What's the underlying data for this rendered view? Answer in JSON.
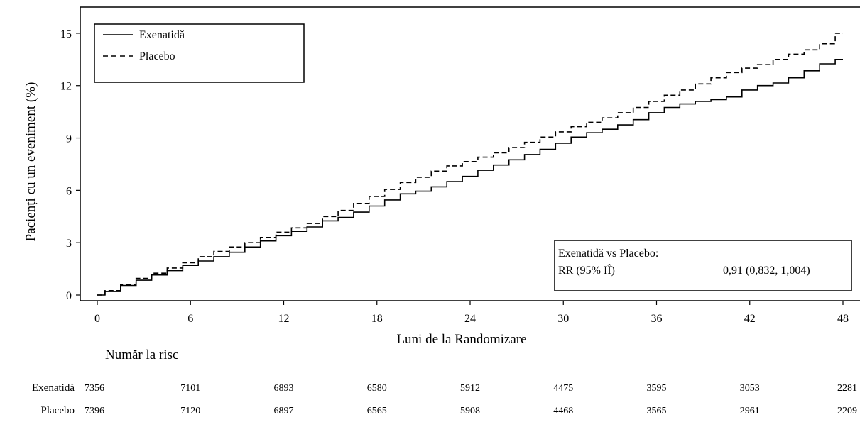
{
  "chart_data": {
    "type": "line",
    "title": "",
    "xlabel": "Luni de la Randomizare",
    "ylabel": "Pacienți cu un eveniment (%)",
    "xlim": [
      0,
      48
    ],
    "ylim": [
      0,
      16.5
    ],
    "xticks": [
      0,
      6,
      12,
      18,
      24,
      30,
      36,
      42,
      48
    ],
    "yticks": [
      0,
      3,
      6,
      9,
      12,
      15
    ],
    "grid": false,
    "legend_position": "top-left",
    "series": [
      {
        "name": "Exenatidă",
        "style": "solid",
        "points": [
          [
            0,
            0
          ],
          [
            1,
            0.2
          ],
          [
            2,
            0.55
          ],
          [
            3,
            0.85
          ],
          [
            4,
            1.15
          ],
          [
            5,
            1.4
          ],
          [
            6,
            1.7
          ],
          [
            7,
            1.95
          ],
          [
            8,
            2.2
          ],
          [
            9,
            2.45
          ],
          [
            10,
            2.75
          ],
          [
            11,
            3.1
          ],
          [
            12,
            3.4
          ],
          [
            13,
            3.65
          ],
          [
            14,
            3.9
          ],
          [
            15,
            4.25
          ],
          [
            16,
            4.45
          ],
          [
            17,
            4.75
          ],
          [
            18,
            5.1
          ],
          [
            19,
            5.45
          ],
          [
            20,
            5.8
          ],
          [
            21,
            5.95
          ],
          [
            22,
            6.2
          ],
          [
            23,
            6.5
          ],
          [
            24,
            6.8
          ],
          [
            25,
            7.15
          ],
          [
            26,
            7.45
          ],
          [
            27,
            7.75
          ],
          [
            28,
            8.05
          ],
          [
            29,
            8.35
          ],
          [
            30,
            8.7
          ],
          [
            31,
            9.05
          ],
          [
            32,
            9.3
          ],
          [
            33,
            9.5
          ],
          [
            34,
            9.75
          ],
          [
            35,
            10.05
          ],
          [
            36,
            10.45
          ],
          [
            37,
            10.75
          ],
          [
            38,
            10.95
          ],
          [
            39,
            11.1
          ],
          [
            40,
            11.2
          ],
          [
            41,
            11.35
          ],
          [
            42,
            11.75
          ],
          [
            43,
            12.0
          ],
          [
            44,
            12.15
          ],
          [
            45,
            12.45
          ],
          [
            46,
            12.85
          ],
          [
            47,
            13.25
          ],
          [
            48,
            13.5
          ]
        ]
      },
      {
        "name": "Placebo",
        "style": "dashed",
        "points": [
          [
            0,
            0
          ],
          [
            1,
            0.25
          ],
          [
            2,
            0.6
          ],
          [
            3,
            0.95
          ],
          [
            4,
            1.25
          ],
          [
            5,
            1.55
          ],
          [
            6,
            1.85
          ],
          [
            7,
            2.2
          ],
          [
            8,
            2.5
          ],
          [
            9,
            2.75
          ],
          [
            10,
            3.0
          ],
          [
            11,
            3.3
          ],
          [
            12,
            3.6
          ],
          [
            13,
            3.85
          ],
          [
            14,
            4.1
          ],
          [
            15,
            4.5
          ],
          [
            16,
            4.85
          ],
          [
            17,
            5.25
          ],
          [
            18,
            5.65
          ],
          [
            19,
            6.05
          ],
          [
            20,
            6.45
          ],
          [
            21,
            6.75
          ],
          [
            22,
            7.1
          ],
          [
            23,
            7.4
          ],
          [
            24,
            7.65
          ],
          [
            25,
            7.9
          ],
          [
            26,
            8.15
          ],
          [
            27,
            8.45
          ],
          [
            28,
            8.75
          ],
          [
            29,
            9.05
          ],
          [
            30,
            9.35
          ],
          [
            31,
            9.65
          ],
          [
            32,
            9.9
          ],
          [
            33,
            10.15
          ],
          [
            34,
            10.45
          ],
          [
            35,
            10.75
          ],
          [
            36,
            11.1
          ],
          [
            37,
            11.45
          ],
          [
            38,
            11.75
          ],
          [
            39,
            12.1
          ],
          [
            40,
            12.45
          ],
          [
            41,
            12.75
          ],
          [
            42,
            13.0
          ],
          [
            43,
            13.2
          ],
          [
            44,
            13.5
          ],
          [
            45,
            13.8
          ],
          [
            46,
            14.05
          ],
          [
            47,
            14.4
          ],
          [
            48,
            15.0
          ]
        ]
      }
    ],
    "annotation": {
      "line1": "Exenatidă vs Placebo:",
      "label": "RR (95% IÎ)",
      "value": "0,91 (0,832, 1,004)"
    },
    "risk_table": {
      "title": "Număr la risc",
      "times": [
        0,
        6,
        12,
        18,
        24,
        30,
        36,
        42,
        48
      ],
      "rows": [
        {
          "label": "Exenatidă",
          "values": [
            7356,
            7101,
            6893,
            6580,
            5912,
            4475,
            3595,
            3053,
            2281
          ]
        },
        {
          "label": "Placebo",
          "values": [
            7396,
            7120,
            6897,
            6565,
            5908,
            4468,
            3565,
            2961,
            2209
          ]
        }
      ]
    },
    "colors": {
      "line": "#000000",
      "background": "#ffffff"
    }
  }
}
